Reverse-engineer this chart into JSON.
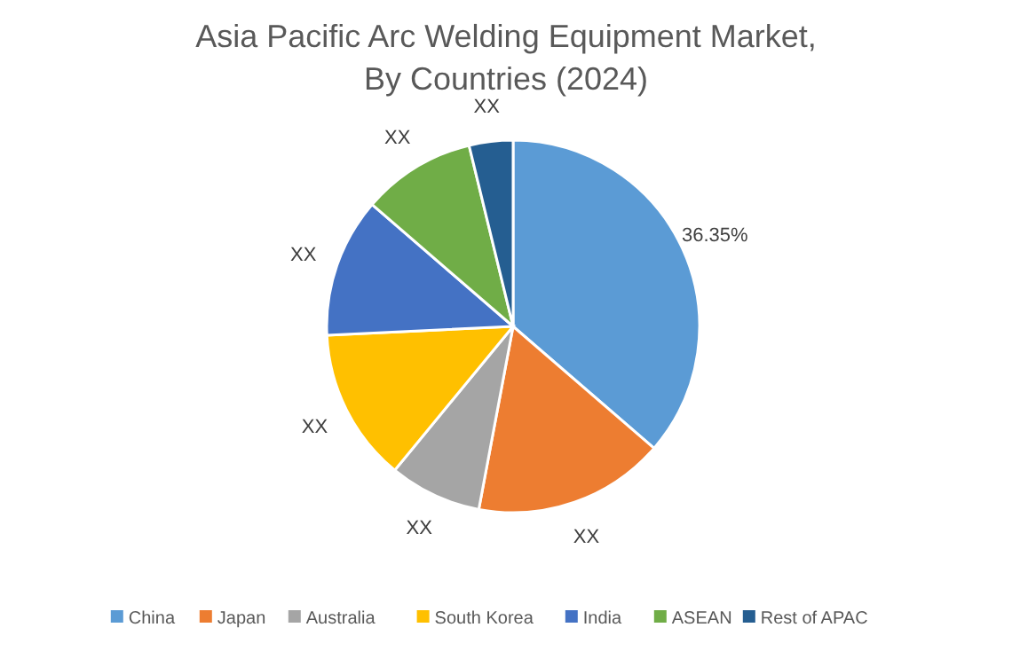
{
  "chart_data": {
    "type": "pie",
    "title": "Asia Pacific Arc Welding Equipment Market, By Countries (2024)",
    "categories": [
      "China",
      "Japan",
      "Australia",
      "South Korea",
      "India",
      "ASEAN",
      "Rest of APAC"
    ],
    "values": [
      36.35,
      16.6,
      8.0,
      13.3,
      12.1,
      9.85,
      3.8
    ],
    "colors": [
      "#5b9bd5",
      "#ed7d31",
      "#a5a5a5",
      "#ffc000",
      "#4472c4",
      "#70ad47",
      "#255e91"
    ],
    "value_labels": [
      "36.35%",
      "XX",
      "XX",
      "XX",
      "XX",
      "XX",
      "XX"
    ],
    "legend": "bottom"
  }
}
